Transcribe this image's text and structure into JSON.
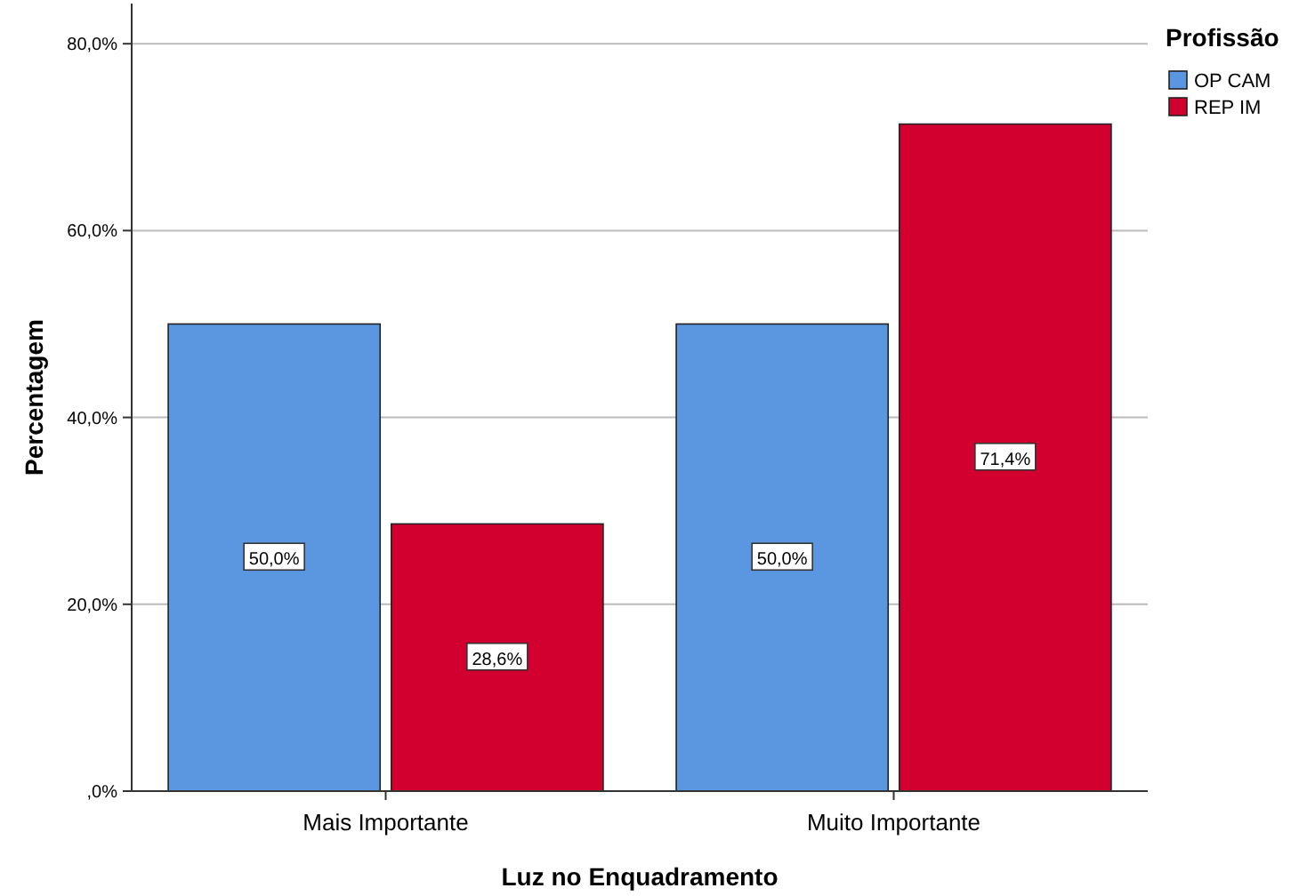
{
  "chart_data": {
    "type": "bar",
    "xlabel": "Luz no Enquadramento",
    "ylabel": "Percentagem",
    "legend_title": "Profissão",
    "legend": "top right",
    "categories": [
      "Mais Importante",
      "Muito Importante"
    ],
    "series": [
      {
        "name": "OP CAM",
        "color": "#5b96e0",
        "values": [
          50.0,
          50.0
        ],
        "value_labels": [
          "50,0%",
          "50,0%"
        ]
      },
      {
        "name": "REP IM",
        "color": "#d1002f",
        "values": [
          28.6,
          71.4
        ],
        "value_labels": [
          "28,6%",
          "71,4%"
        ]
      }
    ],
    "ylim": [
      0,
      84.3
    ],
    "yticks": [
      {
        "value": 0,
        "label": ",0%"
      },
      {
        "value": 20,
        "label": "20,0%"
      },
      {
        "value": 40,
        "label": "40,0%"
      },
      {
        "value": 60,
        "label": "60,0%"
      },
      {
        "value": 80,
        "label": "80,0%"
      }
    ],
    "grid": "y"
  }
}
